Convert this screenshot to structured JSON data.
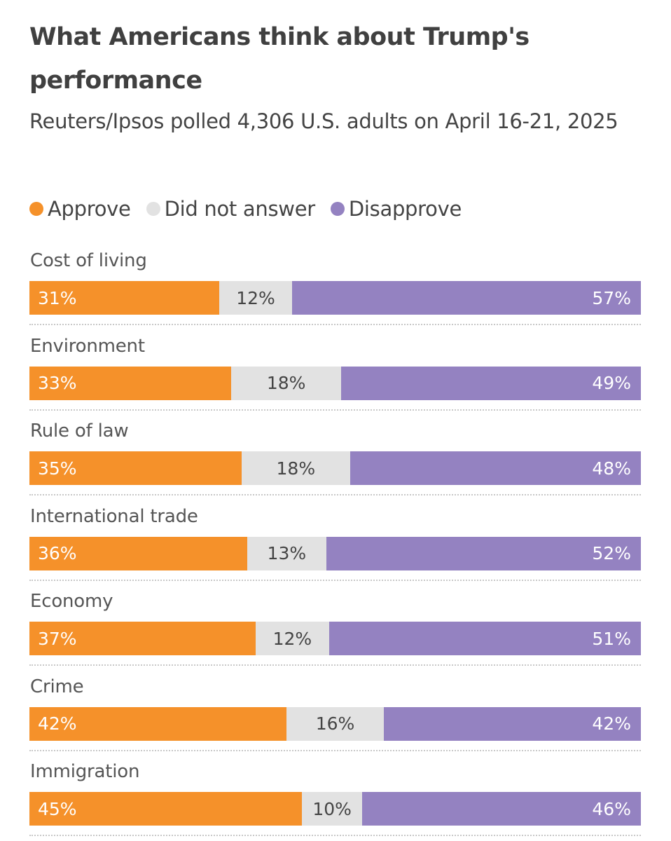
{
  "chart_data": {
    "type": "bar",
    "orientation": "horizontal",
    "stacked": true,
    "normalized": true,
    "title": "What Americans think about Trump's performance",
    "subtitle": "Reuters/Ipsos polled 4,306 U.S. adults on April 16-21, 2025",
    "legend_position": "top-left",
    "grid": false,
    "categories": [
      "Cost of living",
      "Environment",
      "Rule of law",
      "International trade",
      "Economy",
      "Crime",
      "Immigration"
    ],
    "series": [
      {
        "name": "Approve",
        "color": "#f5912a",
        "values": [
          31,
          33,
          35,
          36,
          37,
          42,
          45
        ],
        "labels": [
          "31%",
          "33%",
          "35%",
          "36%",
          "37%",
          "42%",
          "45%"
        ]
      },
      {
        "name": "Did not answer",
        "color": "#e2e2e2",
        "values": [
          12,
          18,
          18,
          13,
          12,
          16,
          10
        ],
        "labels": [
          "12%",
          "18%",
          "18%",
          "13%",
          "12%",
          "16%",
          "10%"
        ]
      },
      {
        "name": "Disapprove",
        "color": "#9482c1",
        "values": [
          57,
          49,
          48,
          52,
          51,
          42,
          46
        ],
        "labels": [
          "57%",
          "49%",
          "48%",
          "52%",
          "51%",
          "42%",
          "46%"
        ]
      }
    ]
  }
}
